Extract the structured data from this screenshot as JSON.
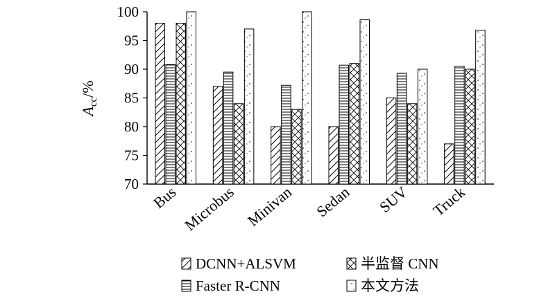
{
  "chart_data": {
    "type": "bar",
    "title": "",
    "xlabel": "",
    "ylabel_main": "A",
    "ylabel_sub": "cc",
    "ylabel_unit": "/%",
    "ylim": [
      70,
      100
    ],
    "yticks": [
      70,
      75,
      80,
      85,
      90,
      95,
      100
    ],
    "grid": false,
    "legend_position": "bottom",
    "categories": [
      "Bus",
      "Microbus",
      "Minivan",
      "Sedan",
      "SUV",
      "Truck"
    ],
    "series": [
      {
        "name": "DCNN+ALSVM",
        "pattern": "diagonal",
        "values": [
          98.0,
          87.0,
          80.0,
          80.0,
          85.0,
          77.0
        ]
      },
      {
        "name": "Faster R-CNN",
        "pattern": "horizontal",
        "values": [
          90.8,
          89.5,
          87.2,
          90.7,
          89.3,
          90.5
        ]
      },
      {
        "name": "半监督 CNN",
        "pattern": "crosshatch",
        "values": [
          98.0,
          84.0,
          83.0,
          91.0,
          84.0,
          90.0
        ]
      },
      {
        "name": "本文方法",
        "pattern": "dots",
        "values": [
          100.0,
          97.0,
          100.0,
          98.6,
          90.0,
          96.8
        ]
      }
    ]
  }
}
